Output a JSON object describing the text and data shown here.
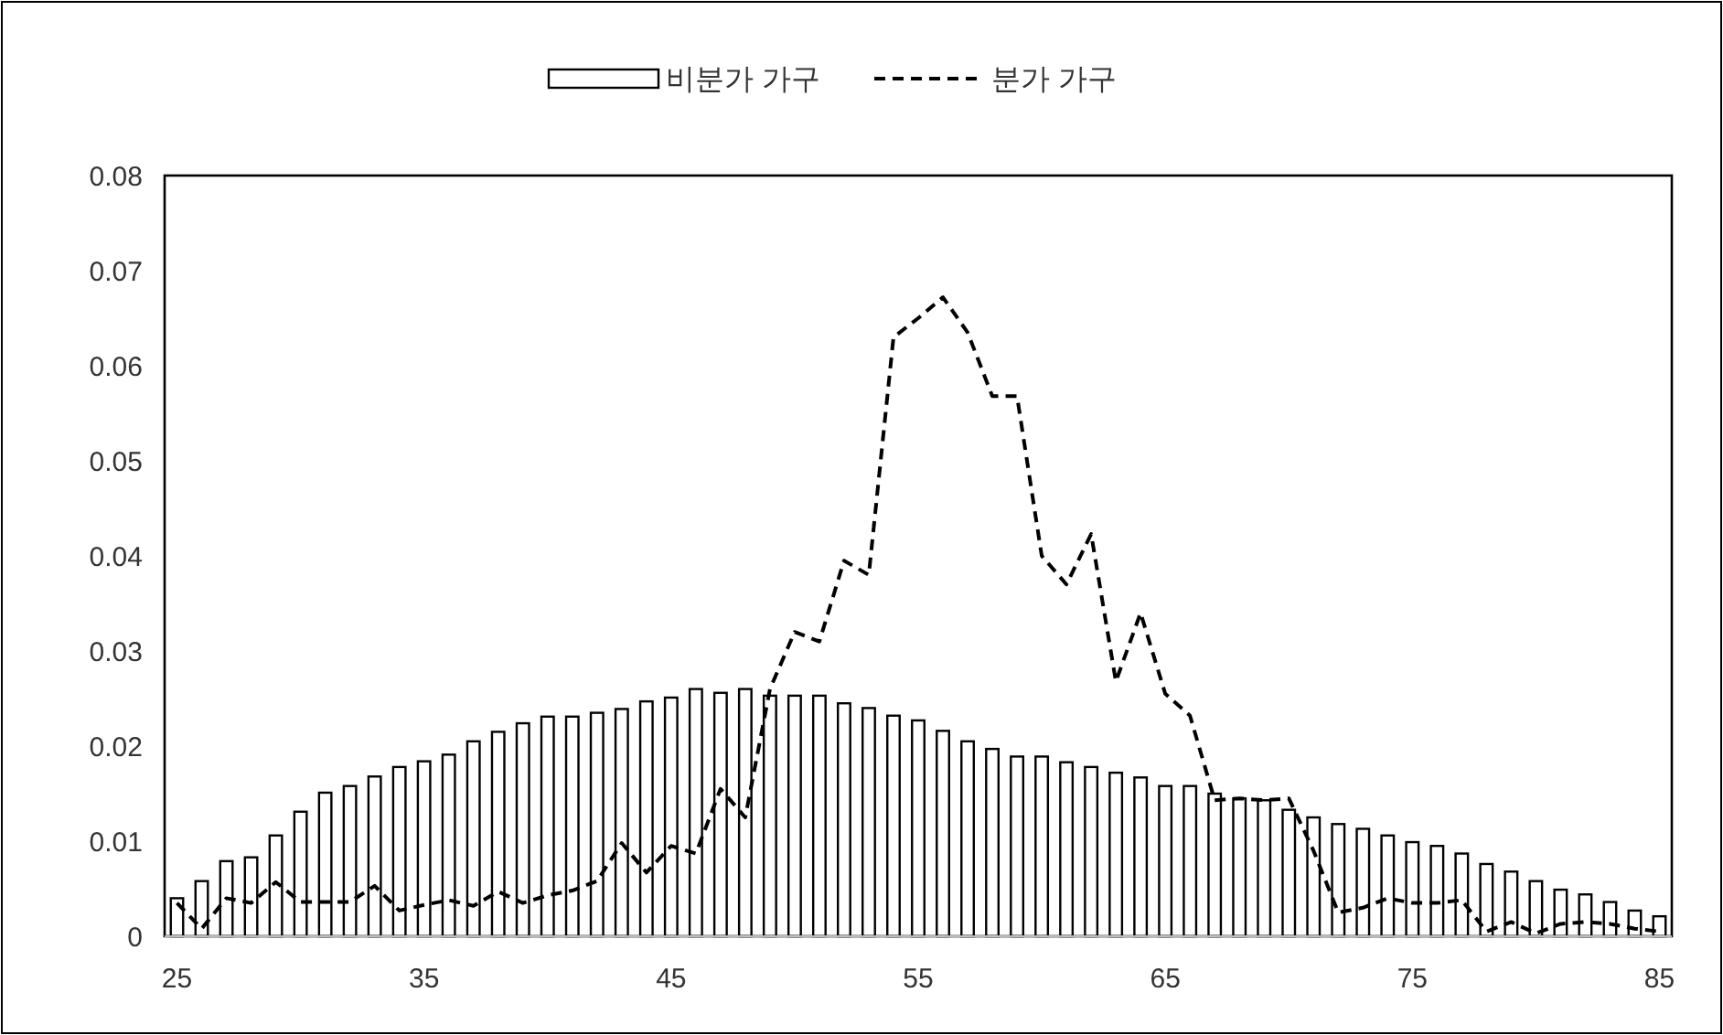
{
  "chart_data": {
    "type": "bar",
    "categories": [
      "25",
      null,
      null,
      null,
      null,
      null,
      null,
      null,
      null,
      null,
      "35",
      null,
      null,
      null,
      null,
      null,
      null,
      null,
      null,
      null,
      "45",
      null,
      null,
      null,
      null,
      null,
      null,
      null,
      null,
      null,
      "55",
      null,
      null,
      null,
      null,
      null,
      null,
      null,
      null,
      null,
      "65",
      null,
      null,
      null,
      null,
      null,
      null,
      null,
      null,
      null,
      "75",
      null,
      null,
      null,
      null,
      null,
      null,
      null,
      null,
      null,
      "85"
    ],
    "series": [
      {
        "name": "비분가 가구",
        "color": "#ffffff",
        "values": [
          0.004,
          0.0058,
          0.0079,
          0.0083,
          0.0106,
          0.0131,
          0.0151,
          0.0158,
          0.0168,
          0.0178,
          0.0184,
          0.0191,
          0.0205,
          0.0215,
          0.0224,
          0.0231,
          0.0231,
          0.0235,
          0.0239,
          0.0247,
          0.0251,
          0.026,
          0.0256,
          0.026,
          0.0253,
          0.0253,
          0.0253,
          0.0245,
          0.024,
          0.0232,
          0.0227,
          0.0216,
          0.0205,
          0.0197,
          0.0189,
          0.0189,
          0.0183,
          0.0178,
          0.0172,
          0.0167,
          0.0158,
          0.0158,
          0.015,
          0.0145,
          0.0143,
          0.0133,
          0.0125,
          0.0118,
          0.0113,
          0.0106,
          0.0099,
          0.0095,
          0.0087,
          0.0076,
          0.0068,
          0.0058,
          0.0049,
          0.0044,
          0.0036,
          0.0027,
          0.0021
        ]
      },
      {
        "name": "분가 가구",
        "type": "line",
        "color": "#000000",
        "line_style": "dashed",
        "marker": "none",
        "values": [
          0.0035,
          0.0008,
          0.004,
          0.0035,
          0.0057,
          0.0036,
          0.0036,
          0.0036,
          0.0053,
          0.0027,
          0.0033,
          0.0038,
          0.0032,
          0.0047,
          0.0035,
          0.0043,
          0.0048,
          0.0058,
          0.0098,
          0.0067,
          0.0095,
          0.0087,
          0.0155,
          0.0125,
          0.026,
          0.032,
          0.031,
          0.0395,
          0.038,
          0.063,
          0.065,
          0.0672,
          0.0635,
          0.0568,
          0.0568,
          0.04,
          0.037,
          0.0423,
          0.0268,
          0.034,
          0.0255,
          0.0232,
          0.0143,
          0.0145,
          0.0143,
          0.0145,
          0.009,
          0.0025,
          0.003,
          0.004,
          0.0035,
          0.0035,
          0.0038,
          0.0005,
          0.0015,
          0.0003,
          0.0013,
          0.0015,
          0.0013,
          0.0008,
          0.0005
        ]
      }
    ],
    "ylim": [
      0,
      0.08
    ],
    "yticks": [
      0,
      0.01,
      0.02,
      0.03,
      0.04,
      0.05,
      0.06,
      0.07,
      0.08
    ],
    "grid": false,
    "legend": "top"
  }
}
